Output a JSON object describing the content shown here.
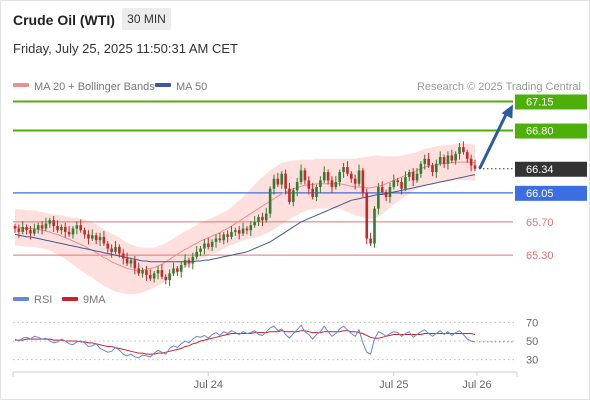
{
  "header": {
    "instrument": "Crude Oil (WTI)",
    "timeframe": "30 MIN",
    "datetime": "Friday, July 25, 2025 11:50:31 AM CET"
  },
  "colors": {
    "candle_up": "#2e7d32",
    "candle_down": "#c62828",
    "band_fill": "#fde0de",
    "ma20": "#ef8e8e",
    "ma50": "#3d5a99",
    "resistance": "#4caf0a",
    "support": "#e57373",
    "pivot": "#3b6ee0",
    "current": "#333333",
    "rsi": "#6a86d8",
    "rsi_ma": "#cc2222",
    "arrow": "#2d5b9e"
  },
  "chart_data": [
    {
      "type": "candlestick",
      "title": "Crude Oil (WTI)",
      "timeframe": "30 MIN",
      "legend": [
        {
          "label": "MA 20 + Bollinger Bands",
          "color": "#ef8e8e"
        },
        {
          "label": "MA 50",
          "color": "#3d5a99"
        }
      ],
      "credit": "Research © 2025 Trading Central",
      "ylim": [
        64.7,
        67.3
      ],
      "x_ticks": [
        {
          "label": "Jul 24",
          "index": 50
        },
        {
          "label": "Jul 25",
          "index": 98
        },
        {
          "label": "Jul 26",
          "index": 123
        }
      ],
      "levels": [
        {
          "label": "67.15",
          "value": 67.15,
          "kind": "resistance"
        },
        {
          "label": "66.80",
          "value": 66.8,
          "kind": "resistance"
        },
        {
          "label": "66.34",
          "value": 66.34,
          "kind": "current"
        },
        {
          "label": "66.05",
          "value": 66.05,
          "kind": "pivot"
        },
        {
          "label": "65.70",
          "value": 65.7,
          "kind": "support"
        },
        {
          "label": "65.30",
          "value": 65.3,
          "kind": "support"
        }
      ],
      "forecast_arrow": {
        "from": 66.34,
        "to": 67.15
      },
      "closes": [
        65.62,
        65.58,
        65.64,
        65.6,
        65.56,
        65.61,
        65.66,
        65.62,
        65.68,
        65.72,
        65.65,
        65.6,
        65.64,
        65.58,
        65.55,
        65.62,
        65.66,
        65.6,
        65.55,
        65.5,
        65.54,
        65.48,
        65.52,
        65.44,
        65.38,
        65.34,
        65.4,
        65.32,
        65.26,
        65.2,
        65.24,
        65.14,
        65.08,
        65.12,
        65.06,
        65.02,
        65.08,
        65.12,
        65.04,
        65.0,
        65.08,
        65.14,
        65.1,
        65.18,
        65.24,
        65.2,
        65.28,
        65.34,
        65.38,
        65.44,
        65.4,
        65.46,
        65.5,
        65.48,
        65.55,
        65.52,
        65.58,
        65.6,
        65.56,
        65.62,
        65.6,
        65.66,
        65.7,
        65.76,
        65.72,
        65.8,
        66.1,
        66.22,
        66.15,
        66.28,
        66.1,
        65.94,
        66.08,
        66.18,
        66.32,
        66.2,
        66.1,
        66.0,
        66.12,
        66.2,
        66.3,
        66.2,
        66.12,
        66.18,
        66.3,
        66.36,
        66.28,
        66.22,
        66.16,
        66.32,
        66.05,
        65.5,
        65.44,
        65.86,
        66.12,
        66.06,
        66.0,
        66.12,
        66.2,
        66.18,
        66.1,
        66.24,
        66.3,
        66.2,
        66.28,
        66.4,
        66.46,
        66.38,
        66.3,
        66.4,
        66.48,
        66.4,
        66.5,
        66.44,
        66.52,
        66.6,
        66.54,
        66.46,
        66.38,
        66.34
      ],
      "ma20": [
        65.64,
        65.63,
        65.63,
        65.62,
        65.62,
        65.62,
        65.61,
        65.6,
        65.59,
        65.58,
        65.56,
        65.55,
        65.53,
        65.51,
        65.49,
        65.47,
        65.45,
        65.43,
        65.41,
        65.38,
        65.36,
        65.33,
        65.3,
        65.27,
        65.25,
        65.22,
        65.2,
        65.18,
        65.16,
        65.14,
        65.13,
        65.12,
        65.12,
        65.12,
        65.13,
        65.14,
        65.15,
        65.17,
        65.19,
        65.22,
        65.25,
        65.28,
        65.31,
        65.34,
        65.37,
        65.39,
        65.42,
        65.44,
        65.47,
        65.49,
        65.51,
        65.53,
        65.55,
        65.57,
        65.6,
        65.62,
        65.65,
        65.68,
        65.71,
        65.74,
        65.77,
        65.8,
        65.83,
        65.86,
        65.89,
        65.92,
        65.95,
        65.98,
        66.01,
        66.04,
        66.06,
        66.08,
        66.1,
        66.11,
        66.13,
        66.14,
        66.15,
        66.15,
        66.16,
        66.16,
        66.16,
        66.16,
        66.16,
        66.16,
        66.16,
        66.15,
        66.14,
        66.13,
        66.12,
        66.12,
        66.12,
        66.11,
        66.11,
        66.12,
        66.13,
        66.14,
        66.16,
        66.18,
        66.2,
        66.22,
        66.24,
        66.26,
        66.28,
        66.3,
        66.32,
        66.34,
        66.36,
        66.37,
        66.38,
        66.39,
        66.4,
        66.4,
        66.41,
        66.41,
        66.42,
        66.42,
        66.42,
        66.42,
        66.42,
        66.41
      ],
      "band_width": [
        0.22,
        0.22,
        0.22,
        0.22,
        0.22,
        0.22,
        0.22,
        0.22,
        0.22,
        0.22,
        0.23,
        0.24,
        0.25,
        0.26,
        0.27,
        0.28,
        0.3,
        0.31,
        0.32,
        0.33,
        0.33,
        0.34,
        0.34,
        0.34,
        0.34,
        0.34,
        0.34,
        0.33,
        0.32,
        0.31,
        0.3,
        0.29,
        0.28,
        0.27,
        0.26,
        0.25,
        0.24,
        0.24,
        0.23,
        0.23,
        0.22,
        0.22,
        0.22,
        0.22,
        0.22,
        0.22,
        0.22,
        0.22,
        0.22,
        0.22,
        0.22,
        0.22,
        0.22,
        0.22,
        0.22,
        0.22,
        0.23,
        0.24,
        0.25,
        0.26,
        0.28,
        0.3,
        0.32,
        0.34,
        0.35,
        0.36,
        0.37,
        0.37,
        0.37,
        0.37,
        0.36,
        0.35,
        0.34,
        0.33,
        0.32,
        0.31,
        0.3,
        0.3,
        0.3,
        0.3,
        0.3,
        0.3,
        0.3,
        0.3,
        0.3,
        0.31,
        0.32,
        0.33,
        0.34,
        0.35,
        0.36,
        0.37,
        0.38,
        0.38,
        0.37,
        0.35,
        0.33,
        0.31,
        0.29,
        0.27,
        0.26,
        0.25,
        0.24,
        0.23,
        0.22,
        0.22,
        0.22,
        0.22,
        0.22,
        0.22,
        0.22,
        0.22,
        0.22,
        0.22,
        0.22,
        0.22,
        0.22,
        0.22,
        0.22,
        0.22
      ],
      "ma50": [
        65.55,
        65.54,
        65.53,
        65.52,
        65.52,
        65.51,
        65.5,
        65.49,
        65.48,
        65.47,
        65.46,
        65.45,
        65.44,
        65.43,
        65.42,
        65.41,
        65.4,
        65.39,
        65.38,
        65.37,
        65.36,
        65.35,
        65.34,
        65.33,
        65.32,
        65.31,
        65.3,
        65.29,
        65.28,
        65.27,
        65.26,
        65.25,
        65.24,
        65.23,
        65.23,
        65.22,
        65.22,
        65.22,
        65.22,
        65.22,
        65.22,
        65.22,
        65.22,
        65.22,
        65.22,
        65.22,
        65.22,
        65.23,
        65.23,
        65.24,
        65.24,
        65.25,
        65.26,
        65.27,
        65.28,
        65.29,
        65.3,
        65.31,
        65.32,
        65.33,
        65.34,
        65.36,
        65.38,
        65.4,
        65.42,
        65.44,
        65.46,
        65.49,
        65.52,
        65.55,
        65.58,
        65.61,
        65.64,
        65.67,
        65.7,
        65.72,
        65.74,
        65.76,
        65.78,
        65.8,
        65.82,
        65.84,
        65.86,
        65.88,
        65.9,
        65.92,
        65.94,
        65.96,
        65.97,
        65.98,
        65.99,
        66.0,
        66.01,
        66.02,
        66.03,
        66.03,
        66.04,
        66.05,
        66.06,
        66.07,
        66.08,
        66.09,
        66.1,
        66.11,
        66.12,
        66.13,
        66.14,
        66.15,
        66.16,
        66.17,
        66.18,
        66.19,
        66.2,
        66.21,
        66.22,
        66.23,
        66.24,
        66.25,
        66.26,
        66.27
      ]
    },
    {
      "type": "line",
      "legend": [
        {
          "label": "RSI",
          "color": "#6a86d8"
        },
        {
          "label": "9MA",
          "color": "#cc2222"
        }
      ],
      "ylim": [
        20,
        80
      ],
      "y_ticks": [
        {
          "label": "70",
          "value": 70
        },
        {
          "label": "50",
          "value": 50
        },
        {
          "label": "30",
          "value": 30
        }
      ],
      "series": [
        {
          "name": "RSI",
          "values": [
            52,
            50,
            53,
            54,
            52,
            55,
            54,
            52,
            53,
            50,
            48,
            49,
            52,
            50,
            47,
            46,
            49,
            50,
            48,
            44,
            45,
            47,
            42,
            40,
            38,
            39,
            43,
            40,
            36,
            34,
            36,
            33,
            32,
            35,
            34,
            33,
            37,
            40,
            38,
            36,
            42,
            45,
            43,
            47,
            50,
            48,
            52,
            55,
            54,
            56,
            53,
            57,
            59,
            56,
            60,
            58,
            61,
            59,
            57,
            60,
            58,
            59,
            61,
            57,
            56,
            60,
            64,
            66,
            61,
            63,
            57,
            53,
            58,
            62,
            67,
            60,
            57,
            52,
            57,
            60,
            66,
            60,
            55,
            58,
            63,
            66,
            62,
            58,
            55,
            62,
            48,
            38,
            36,
            52,
            60,
            58,
            55,
            58,
            60,
            59,
            55,
            58,
            60,
            54,
            57,
            60,
            62,
            58,
            55,
            58,
            61,
            57,
            60,
            56,
            59,
            61,
            57,
            52,
            50,
            49
          ]
        },
        {
          "name": "9MA",
          "values": [
            51,
            51,
            51,
            52,
            52,
            52,
            52,
            52,
            52,
            52,
            51,
            51,
            51,
            50,
            50,
            50,
            50,
            49,
            49,
            48,
            48,
            47,
            46,
            45,
            44,
            44,
            43,
            42,
            41,
            40,
            39,
            38,
            37,
            37,
            36,
            36,
            36,
            37,
            37,
            38,
            39,
            40,
            41,
            42,
            44,
            45,
            47,
            48,
            50,
            51,
            52,
            53,
            54,
            55,
            56,
            57,
            58,
            58,
            58,
            58,
            58,
            58,
            59,
            59,
            59,
            59,
            60,
            60,
            60,
            61,
            60,
            60,
            60,
            60,
            61,
            61,
            60,
            59,
            59,
            59,
            60,
            60,
            60,
            60,
            60,
            61,
            61,
            60,
            60,
            59,
            58,
            56,
            54,
            53,
            53,
            54,
            55,
            56,
            57,
            57,
            57,
            57,
            57,
            57,
            57,
            57,
            58,
            58,
            58,
            58,
            58,
            58,
            58,
            58,
            58,
            58,
            58,
            58,
            58,
            57
          ]
        }
      ],
      "x_ticks": [
        {
          "label": "Jul 24",
          "index": 50
        },
        {
          "label": "Jul 25",
          "index": 98
        },
        {
          "label": "Jul 26",
          "index": 123
        }
      ]
    }
  ]
}
